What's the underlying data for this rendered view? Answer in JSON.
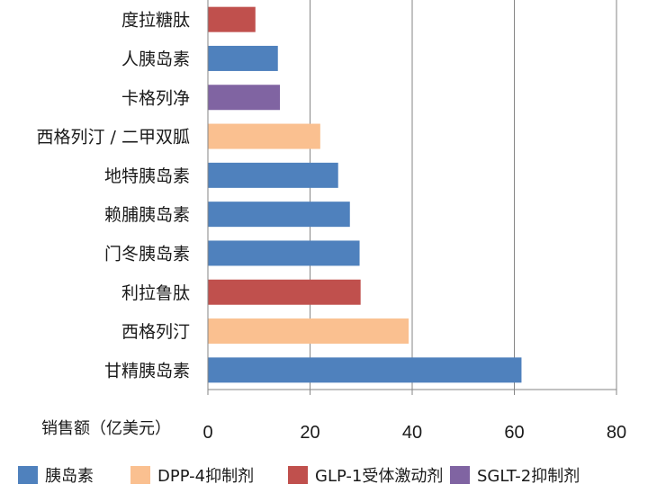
{
  "chart_data": {
    "type": "bar",
    "orientation": "horizontal",
    "xlabel": "销售额（亿美元）",
    "xlim": [
      0,
      80
    ],
    "xticks": [
      0,
      20,
      40,
      60,
      80
    ],
    "grid": true,
    "legend_position": "bottom",
    "categories": [
      "度拉糖肽",
      "人胰岛素",
      "卡格列净",
      "西格列汀 / 二甲双胍",
      "地特胰岛素",
      "赖脯胰岛素",
      "门冬胰岛素",
      "利拉鲁肽",
      "西格列汀",
      "甘精胰岛素"
    ],
    "values": [
      9.3,
      13.7,
      14.1,
      22.0,
      25.5,
      27.8,
      29.7,
      29.9,
      39.3,
      61.4
    ],
    "classes": [
      "glp1",
      "insulin",
      "sglt2",
      "dpp4",
      "insulin",
      "insulin",
      "insulin",
      "glp1",
      "dpp4",
      "insulin"
    ],
    "series": [
      {
        "key": "insulin",
        "name": "胰岛素",
        "color": "#4f81bd"
      },
      {
        "key": "dpp4",
        "name": "DPP-4抑制剂",
        "color": "#fac090"
      },
      {
        "key": "glp1",
        "name": "GLP-1受体激动剂",
        "color": "#c0504d"
      },
      {
        "key": "sglt2",
        "name": "SGLT-2抑制剂",
        "color": "#8064a2"
      }
    ]
  }
}
